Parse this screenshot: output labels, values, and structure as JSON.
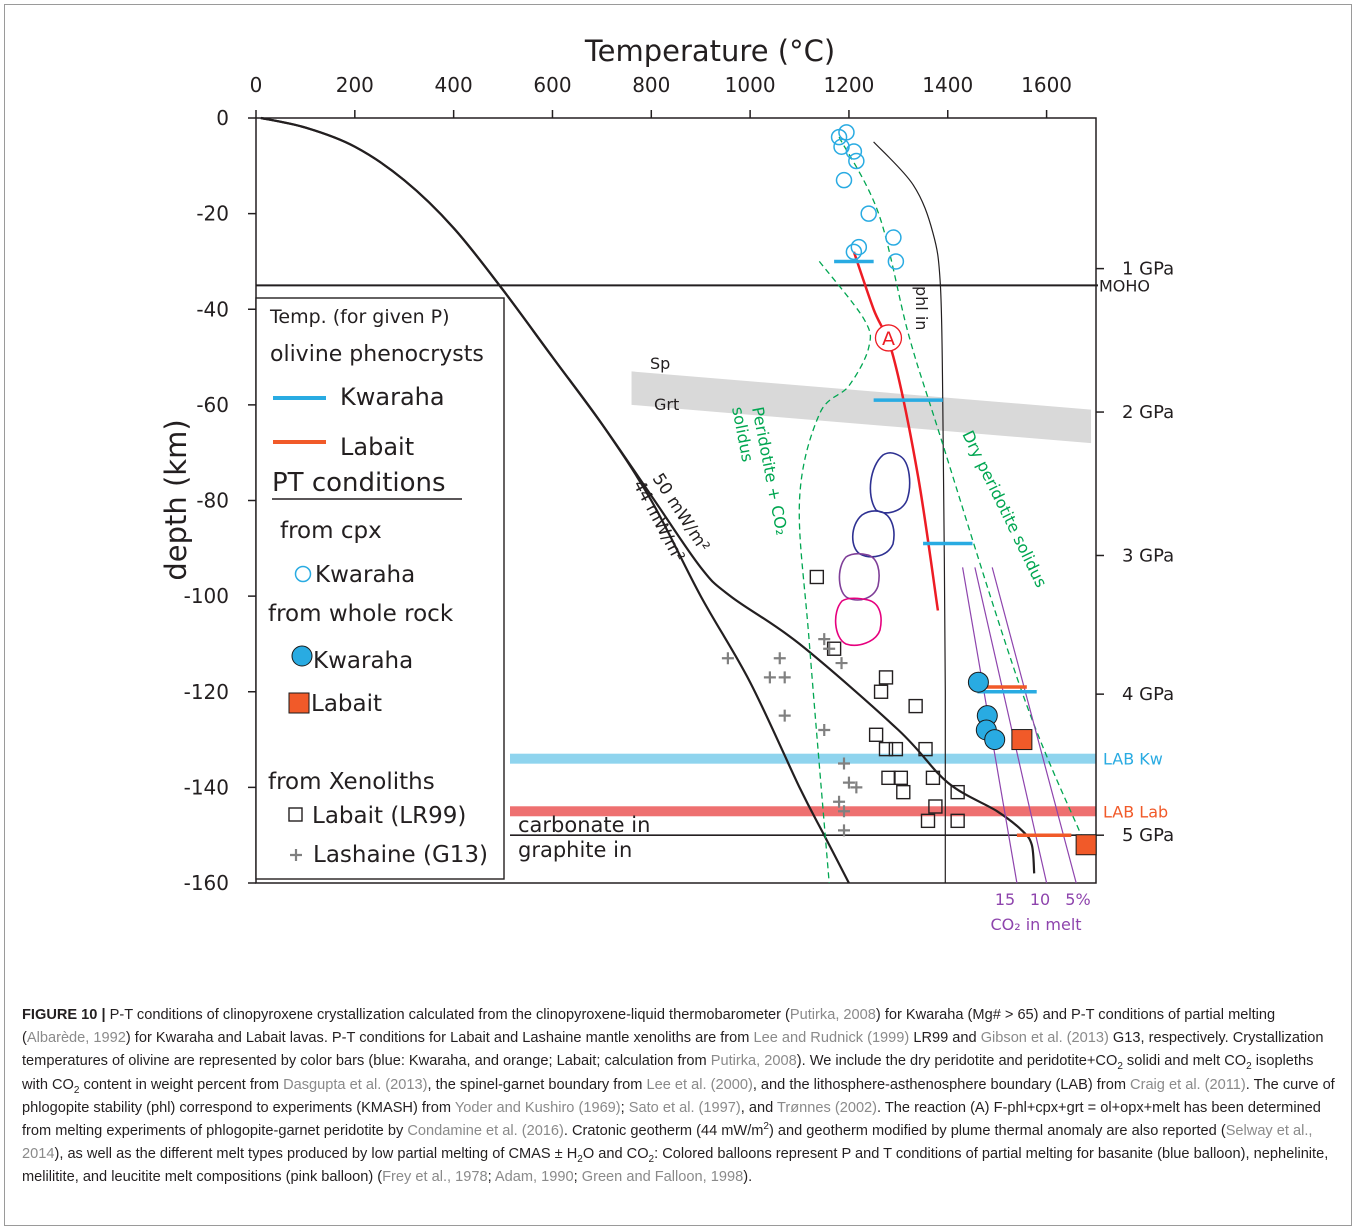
{
  "chart_data": {
    "type": "scatter",
    "title": "",
    "xlabel": "Temperature (°C)",
    "ylabel": "depth  (km)",
    "xlim": [
      0,
      1700
    ],
    "ylim": [
      -160,
      0
    ],
    "xticks": [
      "0",
      "200",
      "400",
      "600",
      "800",
      "1000",
      "1200",
      "1400",
      "1600"
    ],
    "yticks": [
      "0",
      "-20",
      "-40",
      "-60",
      "-80",
      "-100",
      "-120",
      "-140",
      "-160"
    ],
    "pressure_labels": [
      "1 GPa",
      "2 GPa",
      "3 GPa",
      "4 GPa",
      "5 GPa"
    ],
    "moho": {
      "label": "MOHO",
      "depth": -35
    },
    "lab_kw": {
      "label": "LAB Kw",
      "depth": -134,
      "color": "#8fd4ee"
    },
    "lab_lab": {
      "label": "LAB Lab",
      "depth": -145,
      "color": "#ee7070"
    },
    "graphite_depth": -150,
    "carbonate_label": "carbonate in",
    "graphite_label": "graphite in",
    "sp_label": "Sp",
    "grt_label": "Grt",
    "geotherm_50": {
      "label": "50 mW/m²",
      "points": [
        [
          10,
          0
        ],
        [
          100,
          -2
        ],
        [
          200,
          -6
        ],
        [
          300,
          -13
        ],
        [
          400,
          -23
        ],
        [
          500,
          -36
        ],
        [
          600,
          -50
        ],
        [
          700,
          -64
        ],
        [
          800,
          -79
        ],
        [
          900,
          -94
        ],
        [
          960,
          -100
        ],
        [
          1100,
          -110
        ],
        [
          1300,
          -128
        ],
        [
          1400,
          -139
        ],
        [
          1500,
          -145
        ],
        [
          1550,
          -149
        ],
        [
          1570,
          -152
        ],
        [
          1575,
          -158
        ]
      ]
    },
    "geotherm_44": {
      "label": "44 mW/m²",
      "points": [
        [
          10,
          0
        ],
        [
          100,
          -2
        ],
        [
          200,
          -6
        ],
        [
          300,
          -13
        ],
        [
          400,
          -23
        ],
        [
          500,
          -36
        ],
        [
          600,
          -50
        ],
        [
          700,
          -64
        ],
        [
          800,
          -80
        ],
        [
          900,
          -100
        ],
        [
          1000,
          -118
        ],
        [
          1100,
          -140
        ],
        [
          1150,
          -150
        ],
        [
          1200,
          -160
        ]
      ]
    },
    "phl_in": {
      "label": "phl in",
      "points": [
        [
          1250,
          -5
        ],
        [
          1330,
          -14
        ],
        [
          1370,
          -24
        ],
        [
          1385,
          -35
        ],
        [
          1390,
          -60
        ],
        [
          1395,
          -120
        ],
        [
          1395,
          -160
        ]
      ]
    },
    "reaction_A": {
      "label": "A",
      "points": [
        [
          1210,
          -28
        ],
        [
          1250,
          -40
        ],
        [
          1290,
          -50
        ],
        [
          1340,
          -75
        ],
        [
          1380,
          -103
        ]
      ]
    },
    "dry_solidus": {
      "label": "Dry peridotite solidus",
      "points": [
        [
          1180,
          -4
        ],
        [
          1260,
          -20
        ],
        [
          1320,
          -45
        ],
        [
          1380,
          -65
        ],
        [
          1550,
          -120
        ],
        [
          1670,
          -150
        ]
      ]
    },
    "co2_solidus": {
      "label": "Peridotite + CO₂ solidus",
      "points": [
        [
          1140,
          -30
        ],
        [
          1230,
          -42
        ],
        [
          1240,
          -48
        ],
        [
          1200,
          -56
        ],
        [
          1140,
          -62
        ],
        [
          1100,
          -80
        ],
        [
          1120,
          -110
        ],
        [
          1160,
          -160
        ]
      ]
    },
    "co2_melt_label": "CO₂ in melt",
    "co2_isopleths": [
      {
        "label": "15",
        "points": [
          [
            1430,
            -94
          ],
          [
            1540,
            -160
          ]
        ]
      },
      {
        "label": "10",
        "points": [
          [
            1455,
            -94
          ],
          [
            1600,
            -160
          ]
        ]
      },
      {
        "label": "5%",
        "points": [
          [
            1490,
            -94
          ],
          [
            1660,
            -160
          ]
        ]
      }
    ],
    "olivine_kwaraha": [
      [
        1170,
        1250,
        -30
      ],
      [
        1250,
        1390,
        -59
      ],
      [
        1350,
        1450,
        -89
      ],
      [
        1460,
        1580,
        -120
      ]
    ],
    "olivine_labait": [
      [
        1460,
        1560,
        -119
      ],
      [
        1540,
        1650,
        -150
      ]
    ],
    "cpx_kwaraha": [
      [
        1180,
        -4
      ],
      [
        1195,
        -3
      ],
      [
        1185,
        -6
      ],
      [
        1210,
        -7
      ],
      [
        1215,
        -9
      ],
      [
        1190,
        -13
      ],
      [
        1240,
        -20
      ],
      [
        1290,
        -25
      ],
      [
        1295,
        -30
      ],
      [
        1210,
        -28
      ],
      [
        1220,
        -27
      ]
    ],
    "whole_rock_kwaraha": [
      [
        1462,
        -118
      ],
      [
        1480,
        -125
      ],
      [
        1478,
        -128
      ],
      [
        1495,
        -130
      ]
    ],
    "whole_rock_labait": [
      [
        1550,
        -130
      ],
      [
        1680,
        -152
      ]
    ],
    "xenolith_labait": [
      [
        1135,
        -96
      ],
      [
        1170,
        -111
      ],
      [
        1265,
        -120
      ],
      [
        1275,
        -117
      ],
      [
        1255,
        -129
      ],
      [
        1275,
        -132
      ],
      [
        1295,
        -132
      ],
      [
        1335,
        -123
      ],
      [
        1355,
        -132
      ],
      [
        1280,
        -138
      ],
      [
        1305,
        -138
      ],
      [
        1310,
        -141
      ],
      [
        1370,
        -138
      ],
      [
        1375,
        -144
      ],
      [
        1360,
        -147
      ],
      [
        1420,
        -141
      ],
      [
        1420,
        -147
      ]
    ],
    "xenolith_lashaine": [
      [
        955,
        -113
      ],
      [
        1040,
        -117
      ],
      [
        1060,
        -113
      ],
      [
        1070,
        -117
      ],
      [
        1150,
        -109
      ],
      [
        1160,
        -111
      ],
      [
        1185,
        -114
      ],
      [
        1150,
        -128
      ],
      [
        1070,
        -125
      ],
      [
        1190,
        -135
      ],
      [
        1200,
        -139
      ],
      [
        1215,
        -140
      ],
      [
        1180,
        -143
      ],
      [
        1190,
        -145
      ],
      [
        1190,
        -149
      ]
    ],
    "balloons": [
      {
        "name": "basanite",
        "color": "#2e3192"
      },
      {
        "name": "nephelinite",
        "color": "#2e3192"
      },
      {
        "name": "melilitite",
        "color": "#7f3f98"
      },
      {
        "name": "leucitite",
        "color": "#e6007e"
      }
    ],
    "legend": {
      "placement": "left",
      "heading1": "Temp. (for given P)",
      "heading2": "olivine phenocrysts",
      "kwaraha_bar": "Kwaraha",
      "labait_bar": "Labait",
      "pt_heading": "PT conditions",
      "from_cpx": "from cpx",
      "cpx_kwaraha": "Kwaraha",
      "from_whole_rock": "from whole rock",
      "wr_kwaraha": "Kwaraha",
      "wr_labait": "Labait",
      "from_xenoliths": "from Xenoliths",
      "xen_labait": "Labait (LR99)",
      "xen_lashaine": "Lashaine (G13)"
    },
    "colors": {
      "kwaraha": "#29abe2",
      "labait": "#f15a29",
      "green": "#00a651",
      "purple": "#8e44ad",
      "reaction": "#ed1c24",
      "spinel_band": "#d9d9d9"
    }
  },
  "caption": {
    "label": "FIGURE 10 |",
    "segments": [
      {
        "t": " P-T conditions of clinopyroxene crystallization calculated from the clinopyroxene-liquid thermobarometer ("
      },
      {
        "t": "Putirka, 2008",
        "ref": true
      },
      {
        "t": ") for Kwaraha (Mg# > 65) and P-T conditions of partial melting ("
      },
      {
        "t": "Albarède, 1992",
        "ref": true
      },
      {
        "t": ") for Kwaraha and Labait lavas. P-T conditions for Labait and Lashaine mantle xenoliths are from "
      },
      {
        "t": "Lee and Rudnick (1999)",
        "ref": true
      },
      {
        "t": " LR99 and "
      },
      {
        "t": "Gibson et al. (2013)",
        "ref": true
      },
      {
        "t": " G13, respectively. Crystallization temperatures of olivine are represented by color bars (blue: Kwaraha, and orange; Labait; calculation from "
      },
      {
        "t": "Putirka, 2008",
        "ref": true
      },
      {
        "t": "). We include the dry peridotite and peridotite+CO"
      },
      {
        "t": "2",
        "sub": true
      },
      {
        "t": " solidi and melt CO"
      },
      {
        "t": "2",
        "sub": true
      },
      {
        "t": " isopleths with CO"
      },
      {
        "t": "2",
        "sub": true
      },
      {
        "t": " content in weight percent from "
      },
      {
        "t": "Dasgupta et al. (2013)",
        "ref": true
      },
      {
        "t": ", the spinel-garnet boundary from "
      },
      {
        "t": "Lee et al. (2000)",
        "ref": true
      },
      {
        "t": ", and the lithosphere-asthenosphere boundary (LAB) from "
      },
      {
        "t": "Craig et al. (2011)",
        "ref": true
      },
      {
        "t": ". The curve of phlogopite stability (phl) correspond to experiments (KMASH) from "
      },
      {
        "t": "Yoder and Kushiro (1969)",
        "ref": true
      },
      {
        "t": "; "
      },
      {
        "t": "Sato et al. (1997)",
        "ref": true
      },
      {
        "t": ", and "
      },
      {
        "t": "Trønnes (2002)",
        "ref": true
      },
      {
        "t": ". The reaction (A) F-phl+cpx+grt = ol+opx+melt has been determined from melting experiments of phlogopite-garnet peridotite by "
      },
      {
        "t": "Condamine et al. (2016)",
        "ref": true
      },
      {
        "t": ". Cratonic geotherm (44 mW/m"
      },
      {
        "t": "2",
        "sup": true
      },
      {
        "t": ") and geotherm modified by plume thermal anomaly are also reported ("
      },
      {
        "t": "Selway et al., 2014",
        "ref": true
      },
      {
        "t": "), as well as the different melt types produced by low partial melting of CMAS ± H"
      },
      {
        "t": "2",
        "sub": true
      },
      {
        "t": "O and CO"
      },
      {
        "t": "2",
        "sub": true
      },
      {
        "t": ": Colored balloons represent P and T conditions of partial melting for basanite (blue balloon), nephelinite, melilitite, and leucitite melt compositions (pink balloon) ("
      },
      {
        "t": "Frey et al., 1978",
        "ref": true
      },
      {
        "t": "; "
      },
      {
        "t": "Adam, 1990",
        "ref": true
      },
      {
        "t": "; "
      },
      {
        "t": "Green and Falloon, 1998",
        "ref": true
      },
      {
        "t": ")."
      }
    ]
  }
}
